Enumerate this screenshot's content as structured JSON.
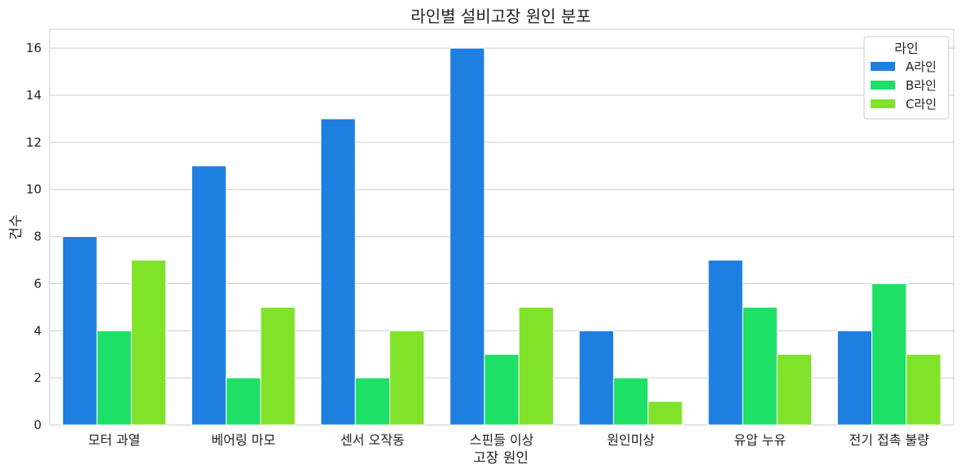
{
  "chart_data": {
    "type": "bar",
    "title": "라인별 설비고장 원인 분포",
    "xlabel": "고장 원인",
    "ylabel": "건수",
    "categories": [
      "모터 과열",
      "베어링 마모",
      "센서 오작동",
      "스핀들 이상",
      "원인미상",
      "유압 누유",
      "전기 접촉 불량"
    ],
    "series": [
      {
        "name": "A라인",
        "color": "#1f7fe0",
        "values": [
          8,
          11,
          13,
          16,
          4,
          7,
          4
        ]
      },
      {
        "name": "B라인",
        "color": "#1ee066",
        "values": [
          4,
          2,
          2,
          3,
          2,
          5,
          6
        ]
      },
      {
        "name": "C라인",
        "color": "#80e32a",
        "values": [
          7,
          5,
          4,
          5,
          1,
          3,
          3
        ]
      }
    ],
    "ylim": [
      0,
      16.8
    ],
    "yticks": [
      0,
      2,
      4,
      6,
      8,
      10,
      12,
      14,
      16
    ],
    "grid": true,
    "legend": {
      "title": "라인",
      "position": "top-right"
    }
  }
}
